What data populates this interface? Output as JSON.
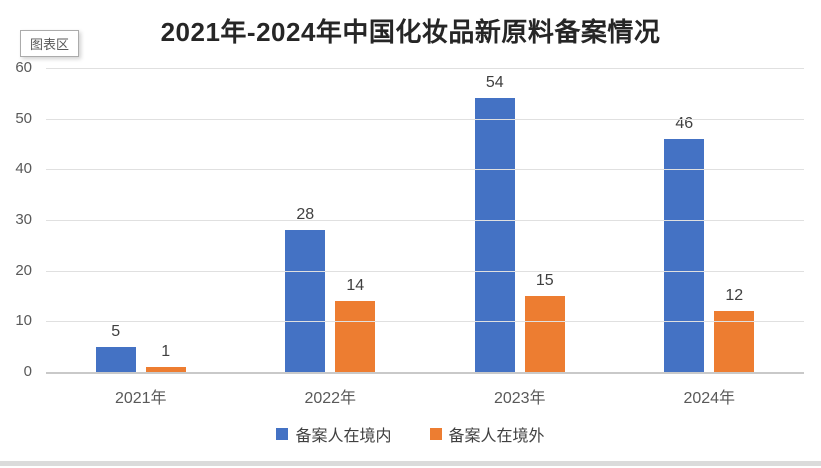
{
  "tooltip": {
    "label": "图表区"
  },
  "chart_data": {
    "type": "bar",
    "title": "2021年-2024年中国化妆品新原料备案情况",
    "categories": [
      "2021年",
      "2022年",
      "2023年",
      "2024年"
    ],
    "series": [
      {
        "name": "备案人在境内",
        "color": "#4472C4",
        "values": [
          5,
          28,
          54,
          46
        ]
      },
      {
        "name": "备案人在境外",
        "color": "#ED7D31",
        "values": [
          1,
          14,
          15,
          12
        ]
      }
    ],
    "ylim": [
      0,
      60
    ],
    "yticks": [
      0,
      10,
      20,
      30,
      40,
      50,
      60
    ],
    "xlabel": "",
    "ylabel": "",
    "grid": true,
    "data_labels": true,
    "legend_position": "bottom"
  },
  "colors": {
    "series_inside": "#4472C4",
    "series_outside": "#ED7D31",
    "gridline": "#e0e0e0",
    "axis_line": "#c9c9c9",
    "title_text": "#262626",
    "label_text": "#404040",
    "tick_text": "#595959"
  }
}
